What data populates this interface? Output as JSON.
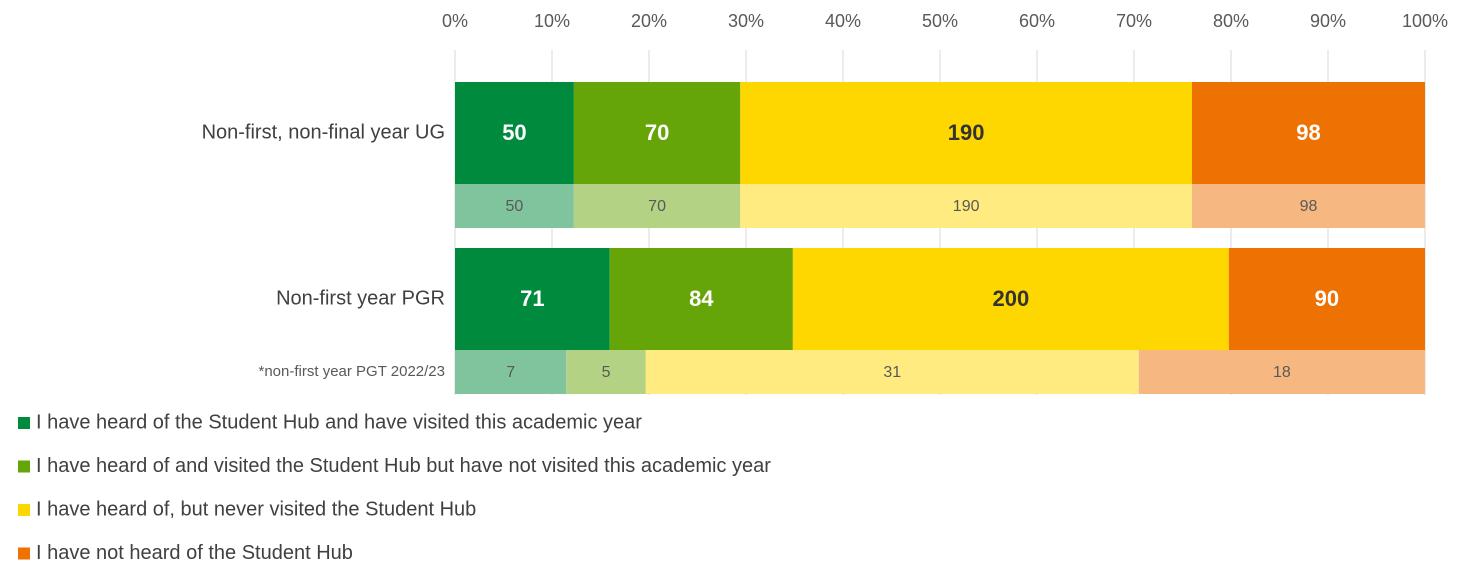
{
  "chart_data": {
    "type": "stacked-bar-100",
    "orientation": "horizontal",
    "categories": [
      "Non-first, non-final year UG",
      null,
      "Non-first year PGR",
      "*non-first year PGT 2022/23"
    ],
    "highlight": [
      true,
      false,
      true,
      false
    ],
    "series": [
      {
        "name": "I have heard of the Student Hub and have visited this academic year",
        "color": "#008a3e",
        "light_color": "#80c49e",
        "label_color": "#ffffff",
        "values": [
          50,
          50,
          71,
          7
        ]
      },
      {
        "name": "I have heard of and visited the Student Hub but have not visited this academic year",
        "color": "#66a508",
        "light_color": "#b3d283",
        "label_color": "#ffffff",
        "values": [
          70,
          70,
          84,
          5
        ]
      },
      {
        "name": "I have heard of, but never visited the Student Hub",
        "color": "#ffd700",
        "light_color": "#ffeb80",
        "label_color": "#333333",
        "values": [
          190,
          190,
          200,
          31
        ]
      },
      {
        "name": "I have not heard of the Student Hub",
        "color": "#ee7202",
        "light_color": "#f6b880",
        "label_color": "#ffffff",
        "values": [
          98,
          98,
          90,
          18
        ]
      }
    ],
    "xlim": [
      0,
      100
    ],
    "xticks": [
      {
        "value": 0,
        "label": "0%"
      },
      {
        "value": 10,
        "label": "10%"
      },
      {
        "value": 20,
        "label": "20%"
      },
      {
        "value": 30,
        "label": "30%"
      },
      {
        "value": 40,
        "label": "40%"
      },
      {
        "value": 50,
        "label": "50%"
      },
      {
        "value": 60,
        "label": "60%"
      },
      {
        "value": 70,
        "label": "70%"
      },
      {
        "value": 80,
        "label": "80%"
      },
      {
        "value": 90,
        "label": "90%"
      },
      {
        "value": 100,
        "label": "100%"
      }
    ],
    "grid": true,
    "legend": "bottom-left"
  }
}
